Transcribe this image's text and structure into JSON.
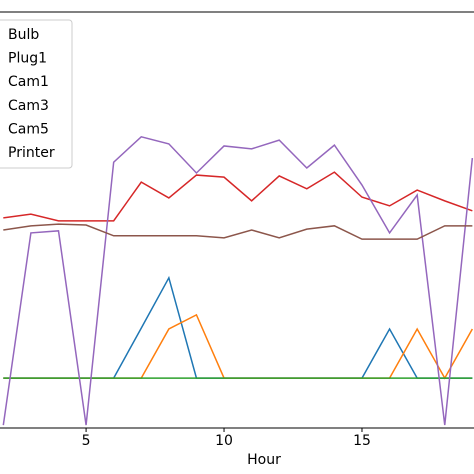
{
  "chart_data": {
    "type": "line",
    "xlabel": "Hour",
    "x": [
      2,
      3,
      4,
      5,
      6,
      7,
      8,
      9,
      10,
      11,
      12,
      13,
      14,
      15,
      16,
      17,
      18,
      19
    ],
    "xlim": [
      1.88,
      19.06
    ],
    "xticks": [
      5,
      10,
      15
    ],
    "ylim": [
      0,
      100
    ],
    "legend": "upper left",
    "series": [
      {
        "name": "Bulb",
        "color": "#1f77b4",
        "values": [
          12,
          12,
          12,
          12,
          12,
          24,
          36.1,
          12,
          12,
          12,
          12,
          12,
          12,
          12,
          23.8,
          12,
          12,
          12
        ]
      },
      {
        "name": "Plug1",
        "color": "#ff7f0e",
        "values": [
          12,
          12,
          12,
          12,
          12,
          12,
          23.8,
          27.2,
          12,
          12,
          12,
          12,
          12,
          12,
          12,
          23.8,
          12,
          23.8
        ]
      },
      {
        "name": "Cam1",
        "color": "#2ca02c",
        "values": [
          12,
          12,
          12,
          12,
          12,
          12,
          12,
          12,
          12,
          12,
          12,
          12,
          12,
          12,
          12,
          12,
          12,
          12
        ]
      },
      {
        "name": "Cam3",
        "color": "#d62728",
        "values": [
          50.5,
          51.4,
          49.8,
          49.8,
          49.8,
          59.1,
          55.3,
          60.8,
          60.3,
          54.6,
          60.6,
          57.5,
          61.5,
          55.5,
          53.4,
          57.2,
          54.6,
          52.2
        ]
      },
      {
        "name": "Cam5",
        "color": "#9467bd",
        "values": [
          0.7,
          46.9,
          47.4,
          0.7,
          63.9,
          70.0,
          68.3,
          61.3,
          67.8,
          67.1,
          69.2,
          62.5,
          68.0,
          58.4,
          46.9,
          56.0,
          0.7,
          64.9
        ]
      },
      {
        "name": "Printer",
        "color": "#8c564b",
        "values": [
          47.6,
          48.6,
          49.0,
          48.8,
          46.2,
          46.2,
          46.2,
          46.2,
          45.7,
          47.6,
          45.7,
          47.8,
          48.6,
          45.4,
          45.4,
          45.4,
          48.6,
          48.6
        ]
      }
    ]
  }
}
